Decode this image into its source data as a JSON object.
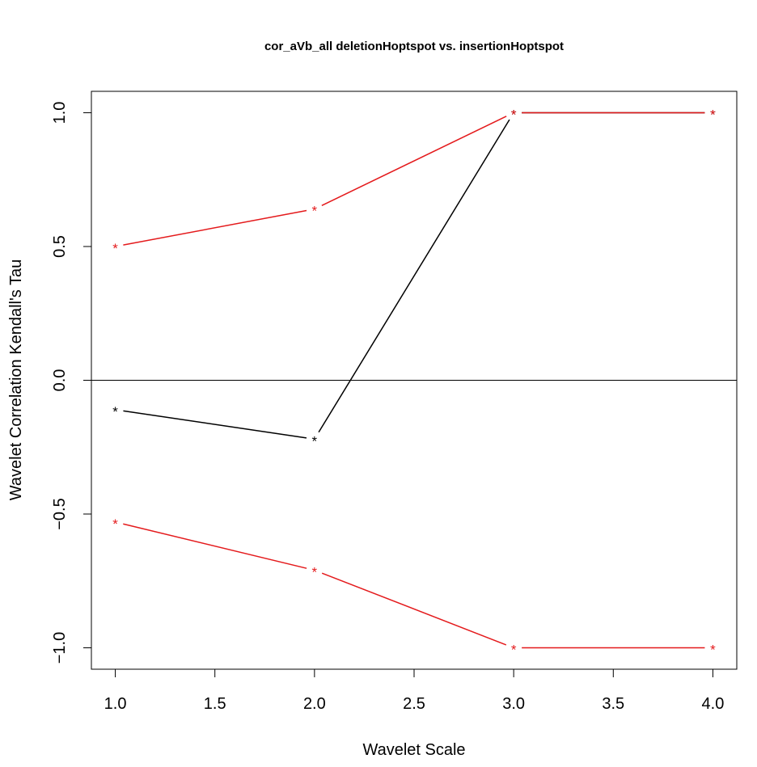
{
  "chart_data": {
    "type": "line",
    "title": "cor_aVb_all deletionHoptspot vs. insertionHoptspot",
    "xlabel": "Wavelet Scale",
    "ylabel": "Wavelet Correlation Kendall's Tau",
    "xlim": [
      0.88,
      4.12
    ],
    "ylim": [
      -1.08,
      1.08
    ],
    "xticks": [
      1.0,
      1.5,
      2.0,
      2.5,
      3.0,
      3.5,
      4.0
    ],
    "xtick_labels": [
      "1.0",
      "1.5",
      "2.0",
      "2.5",
      "3.0",
      "3.5",
      "4.0"
    ],
    "yticks": [
      -1.0,
      -0.5,
      0.0,
      0.5,
      1.0
    ],
    "ytick_labels": [
      "-1.0",
      "-0.5",
      "0.0",
      "0.5",
      "1.0"
    ],
    "reference_line_y": 0,
    "grid": false,
    "legend": "none",
    "x": [
      1,
      2,
      3,
      4
    ],
    "series": [
      {
        "values": [
          -0.11,
          -0.22,
          1.0,
          1.0
        ],
        "color": "#000000"
      },
      {
        "values": [
          0.5,
          0.64,
          1.0,
          1.0
        ],
        "color": "#e41a1c"
      },
      {
        "values": [
          -0.53,
          -0.71,
          -1.0,
          -1.0
        ],
        "color": "#e41a1c"
      }
    ],
    "marker": "*"
  }
}
